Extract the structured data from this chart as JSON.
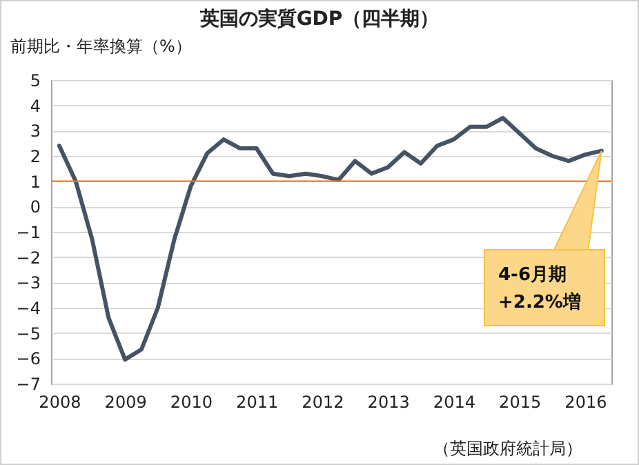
{
  "chart_data": {
    "type": "line",
    "title": "英国の実質GDP（四半期）",
    "ylabel": "前期比・年率換算（%）",
    "x": [
      2008,
      2008.25,
      2008.5,
      2008.75,
      2009,
      2009.25,
      2009.5,
      2009.75,
      2010,
      2010.25,
      2010.5,
      2010.75,
      2011,
      2011.25,
      2011.5,
      2011.75,
      2012,
      2012.25,
      2012.5,
      2012.75,
      2013,
      2013.25,
      2013.5,
      2013.75,
      2014,
      2014.25,
      2014.5,
      2014.75,
      2015,
      2015.25,
      2015.5,
      2015.75,
      2016,
      2016.25
    ],
    "series": [
      {
        "color": "#465364",
        "values": [
          2.4,
          1.0,
          -1.3,
          -4.4,
          -6.05,
          -5.65,
          -4.0,
          -1.3,
          0.8,
          2.1,
          2.65,
          2.3,
          2.3,
          1.3,
          1.2,
          1.3,
          1.2,
          1.05,
          1.8,
          1.3,
          1.55,
          2.15,
          1.7,
          2.4,
          2.65,
          3.15,
          3.15,
          3.5,
          2.9,
          2.3,
          2.0,
          1.8,
          2.05,
          2.2
        ]
      }
    ],
    "xlim": [
      2007.875,
      2016.4
    ],
    "xticks": [
      2008,
      2009,
      2010,
      2011,
      2012,
      2013,
      2014,
      2015,
      2016
    ],
    "ylim": [
      -7,
      5
    ],
    "yticks": [
      -7,
      -6,
      -5,
      -4,
      -3,
      -2,
      -1,
      0,
      1,
      2,
      3,
      4,
      5
    ],
    "grid": "y",
    "ref_lines": [
      {
        "axis": "y",
        "value": 1,
        "color": "#ed7d31"
      }
    ],
    "annotations": [
      {
        "text": "4-6月期\n+2.2%増",
        "x": 2016.25,
        "y": 2.2
      },
      "（英国政府統計局）"
    ]
  }
}
